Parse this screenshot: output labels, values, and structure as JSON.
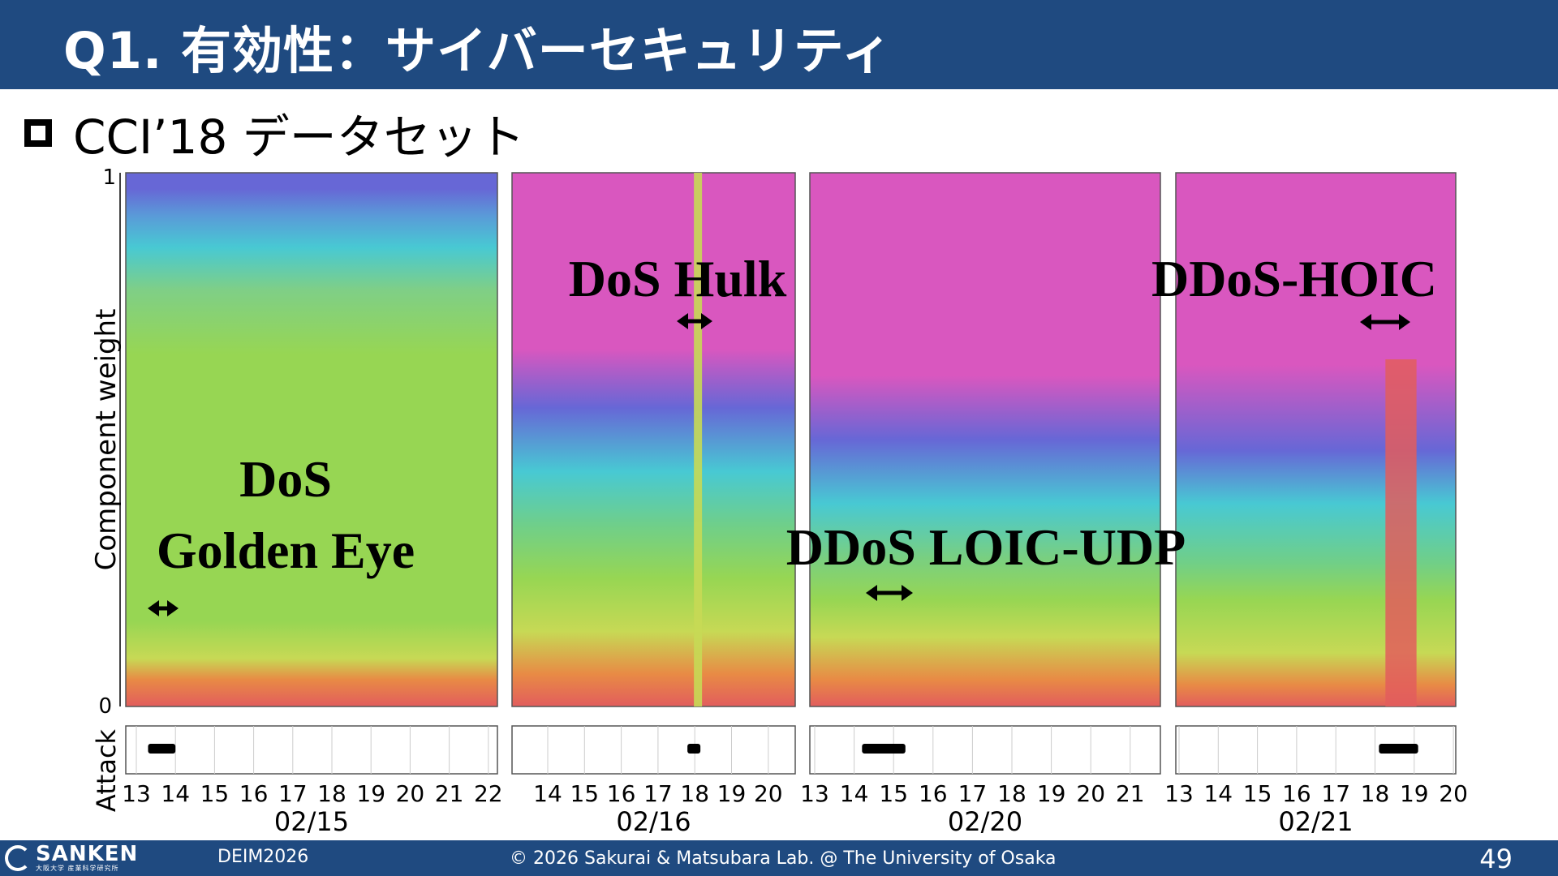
{
  "header": {
    "title": "Q1. 有効性：サイバーセキュリティ"
  },
  "bullet": {
    "text": "CCI’18 データセット"
  },
  "chart_data": {
    "type": "area",
    "ylabel": "Component weight",
    "attack_label": "Attack",
    "ylim": [
      0,
      1
    ],
    "yticks": [
      "0",
      "1"
    ],
    "panels": [
      {
        "date": "02/15",
        "hours": [
          "13",
          "14",
          "15",
          "16",
          "17",
          "18",
          "19",
          "20",
          "21",
          "22"
        ],
        "attack": "DoS Golden Eye",
        "attack_lines": [
          "DoS",
          "Golden Eye"
        ],
        "attack_window": [
          13.3,
          14.0
        ]
      },
      {
        "date": "02/16",
        "hours": [
          "14",
          "15",
          "16",
          "17",
          "18",
          "19",
          "20"
        ],
        "attack": "DoS Hulk",
        "attack_lines": [
          "DoS Hulk"
        ],
        "attack_window": [
          17.8,
          18.1
        ]
      },
      {
        "date": "02/20",
        "hours": [
          "13",
          "14",
          "15",
          "16",
          "17",
          "18",
          "19",
          "20",
          "21"
        ],
        "attack": "DDoS LOIC-UDP",
        "attack_lines": [
          "DDoS LOIC-UDP"
        ],
        "attack_window": [
          14.2,
          15.3
        ]
      },
      {
        "date": "02/21",
        "hours": [
          "13",
          "14",
          "15",
          "16",
          "17",
          "18",
          "19",
          "20"
        ],
        "attack": "DDoS-HOIC",
        "attack_lines": [
          "DDoS-HOIC"
        ],
        "attack_window": [
          18.1,
          19.1
        ]
      }
    ]
  },
  "colors": {
    "header": "#1f4a80",
    "magenta": "#d957bf",
    "green": "#97d653",
    "yellow": "#c7d955",
    "cyan": "#48c9d3",
    "blue": "#6767d6",
    "orange": "#e88a45",
    "red": "#e25d5d"
  },
  "footer": {
    "logo": "SANKEN",
    "logo_sub": "大阪大学 産業科学研究所",
    "conference": "DEIM2026",
    "copyright": "© 2026 Sakurai & Matsubara Lab. @ The University of Osaka",
    "page": "49"
  }
}
